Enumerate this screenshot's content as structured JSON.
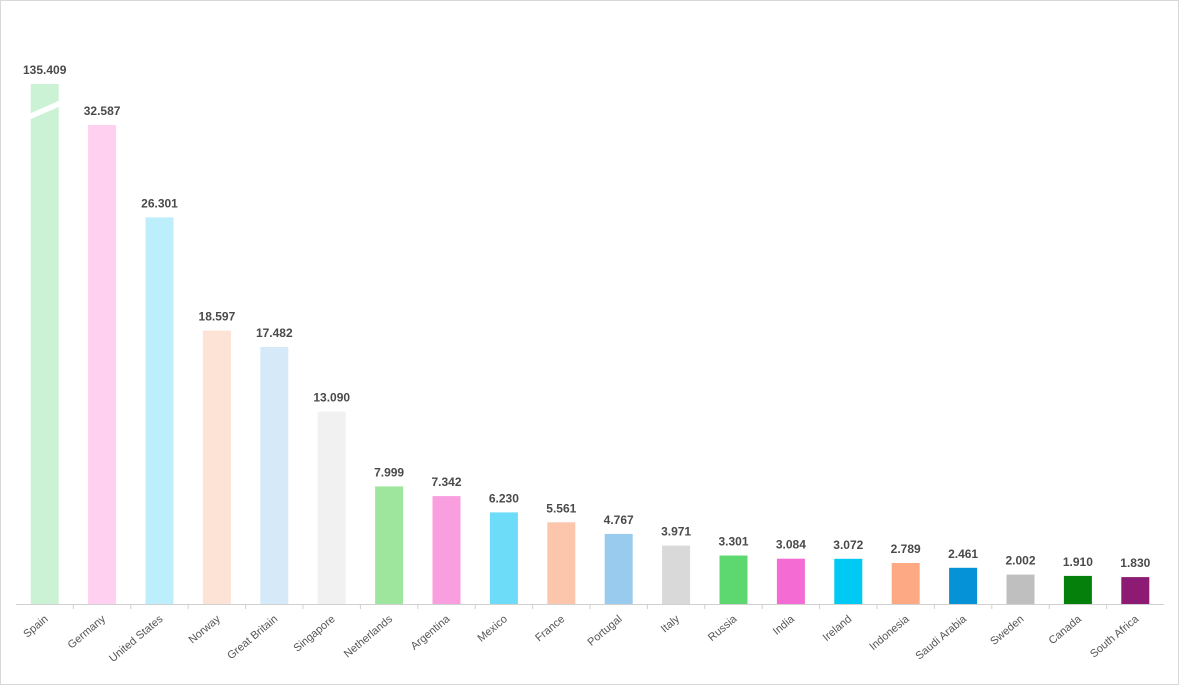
{
  "chart_data": {
    "type": "bar",
    "title": "",
    "xlabel": "",
    "ylabel": "",
    "axis_break": true,
    "categories": [
      "Spain",
      "Germany",
      "United States",
      "Norway",
      "Great Britain",
      "Singapore",
      "Netherlands",
      "Argentina",
      "Mexico",
      "France",
      "Portugal",
      "Italy",
      "Russia",
      "India",
      "Ireland",
      "Indonesia",
      "Saudi Arabia",
      "Sweden",
      "Canada",
      "South Africa"
    ],
    "values": [
      135409,
      32587,
      26301,
      18597,
      17482,
      13090,
      7999,
      7342,
      6230,
      5561,
      4767,
      3971,
      3301,
      3084,
      3072,
      2789,
      2461,
      2002,
      1910,
      1830
    ],
    "value_labels": [
      "135.409",
      "32.587",
      "26.301",
      "18.597",
      "17.482",
      "13.090",
      "7.999",
      "7.342",
      "6.230",
      "5.561",
      "4.767",
      "3.971",
      "3.301",
      "3.084",
      "3.072",
      "2.789",
      "2.461",
      "2.002",
      "1.910",
      "1.830"
    ],
    "colors": [
      "#ccf2d5",
      "#ffd0ef",
      "#bdeefc",
      "#fde3d5",
      "#d6e9f8",
      "#f1f1f1",
      "#9ee59e",
      "#f99fdf",
      "#6ddcf8",
      "#fcc6ad",
      "#99cbee",
      "#d9d9d9",
      "#5dd870",
      "#f46bd3",
      "#00c9f4",
      "#fdaa84",
      "#0592d6",
      "#bfbfbf",
      "#05800a",
      "#8d1a73"
    ]
  }
}
